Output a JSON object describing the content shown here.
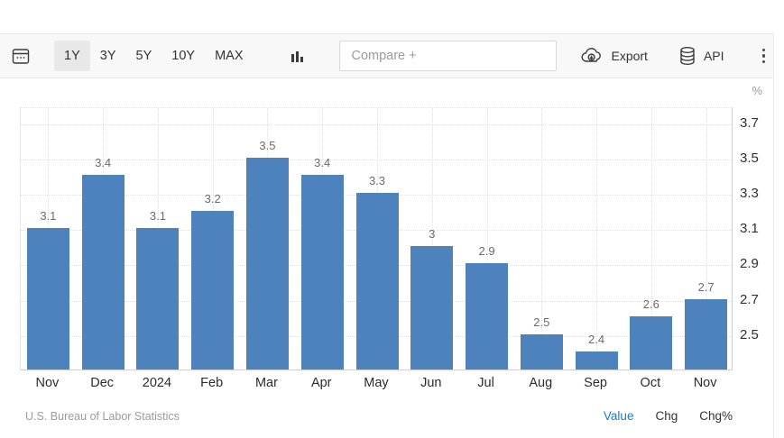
{
  "toolbar": {
    "calendar_icon": "calendar-icon",
    "range_buttons": [
      {
        "label": "1Y",
        "selected": true
      },
      {
        "label": "3Y",
        "selected": false
      },
      {
        "label": "5Y",
        "selected": false
      },
      {
        "label": "10Y",
        "selected": false
      },
      {
        "label": "MAX",
        "selected": false
      }
    ],
    "chart_type_icon": "bar-chart-icon",
    "compare_placeholder": "Compare +",
    "export_label": "Export",
    "api_label": "API",
    "more_menu_icon": "kebab-menu-icon"
  },
  "chart_data": {
    "type": "bar",
    "title": "",
    "categories": [
      "Nov",
      "Dec",
      "2024",
      "Feb",
      "Mar",
      "Apr",
      "May",
      "Jun",
      "Jul",
      "Aug",
      "Sep",
      "Oct",
      "Nov"
    ],
    "values": [
      3.1,
      3.4,
      3.1,
      3.2,
      3.5,
      3.4,
      3.3,
      3.0,
      2.9,
      2.5,
      2.4,
      2.6,
      2.7
    ],
    "value_labels": [
      "3.1",
      "3.4",
      "3.1",
      "3.2",
      "3.5",
      "3.4",
      "3.3",
      "3",
      "2.9",
      "2.5",
      "2.4",
      "2.6",
      "2.7"
    ],
    "unit": "%",
    "xlabel": "",
    "ylabel": "%",
    "yticks": [
      3.7,
      3.5,
      3.3,
      3.1,
      2.9,
      2.7,
      2.5
    ],
    "ylim": [
      2.3,
      3.79
    ],
    "grid": "dotted, horizontal and vertical (at category centers)",
    "legend_position": "none",
    "bar_color": "#4d82bc",
    "axis_side": "right"
  },
  "footer": {
    "source": "U.S. Bureau of Labor Statistics",
    "links": [
      {
        "label": "Value",
        "active": true
      },
      {
        "label": "Chg",
        "active": false
      },
      {
        "label": "Chg%",
        "active": false
      }
    ],
    "active_link_color": "#2079c7"
  }
}
